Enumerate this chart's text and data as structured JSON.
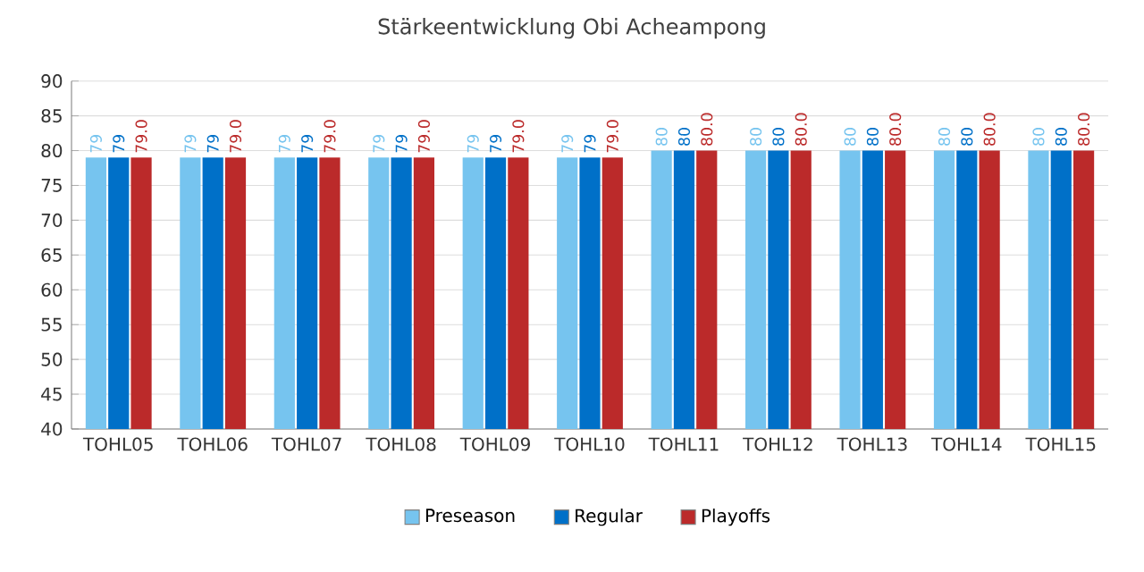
{
  "chart_data": {
    "type": "bar",
    "title": "Stärkeentwicklung Obi Acheampong",
    "categories": [
      "TOHL05",
      "TOHL06",
      "TOHL07",
      "TOHL08",
      "TOHL09",
      "TOHL10",
      "TOHL11",
      "TOHL12",
      "TOHL13",
      "TOHL14",
      "TOHL15"
    ],
    "series": [
      {
        "name": "Preseason",
        "color": "#76c4ef",
        "values": [
          79,
          79,
          79,
          79,
          79,
          79,
          80,
          80,
          80,
          80,
          80
        ],
        "value_labels": [
          "79",
          "79",
          "79",
          "79",
          "79",
          "79",
          "80",
          "80",
          "80",
          "80",
          "80"
        ]
      },
      {
        "name": "Regular",
        "color": "#0070c8",
        "values": [
          79,
          79,
          79,
          79,
          79,
          79,
          80,
          80,
          80,
          80,
          80
        ],
        "value_labels": [
          "79",
          "79",
          "79",
          "79",
          "79",
          "79",
          "80",
          "80",
          "80",
          "80",
          "80"
        ]
      },
      {
        "name": "Playoffs",
        "color": "#bb2a2a",
        "values": [
          79,
          79,
          79,
          79,
          79,
          79,
          80,
          80,
          80,
          80,
          80
        ],
        "value_labels": [
          "79.0",
          "79.0",
          "79.0",
          "79.0",
          "79.0",
          "79.0",
          "80.0",
          "80.0",
          "80.0",
          "80.0",
          "80.0"
        ]
      }
    ],
    "ylim": [
      40,
      90
    ],
    "yticks": [
      40,
      45,
      50,
      55,
      60,
      65,
      70,
      75,
      80,
      85,
      90
    ],
    "grid": "y",
    "legend": "bottom"
  }
}
